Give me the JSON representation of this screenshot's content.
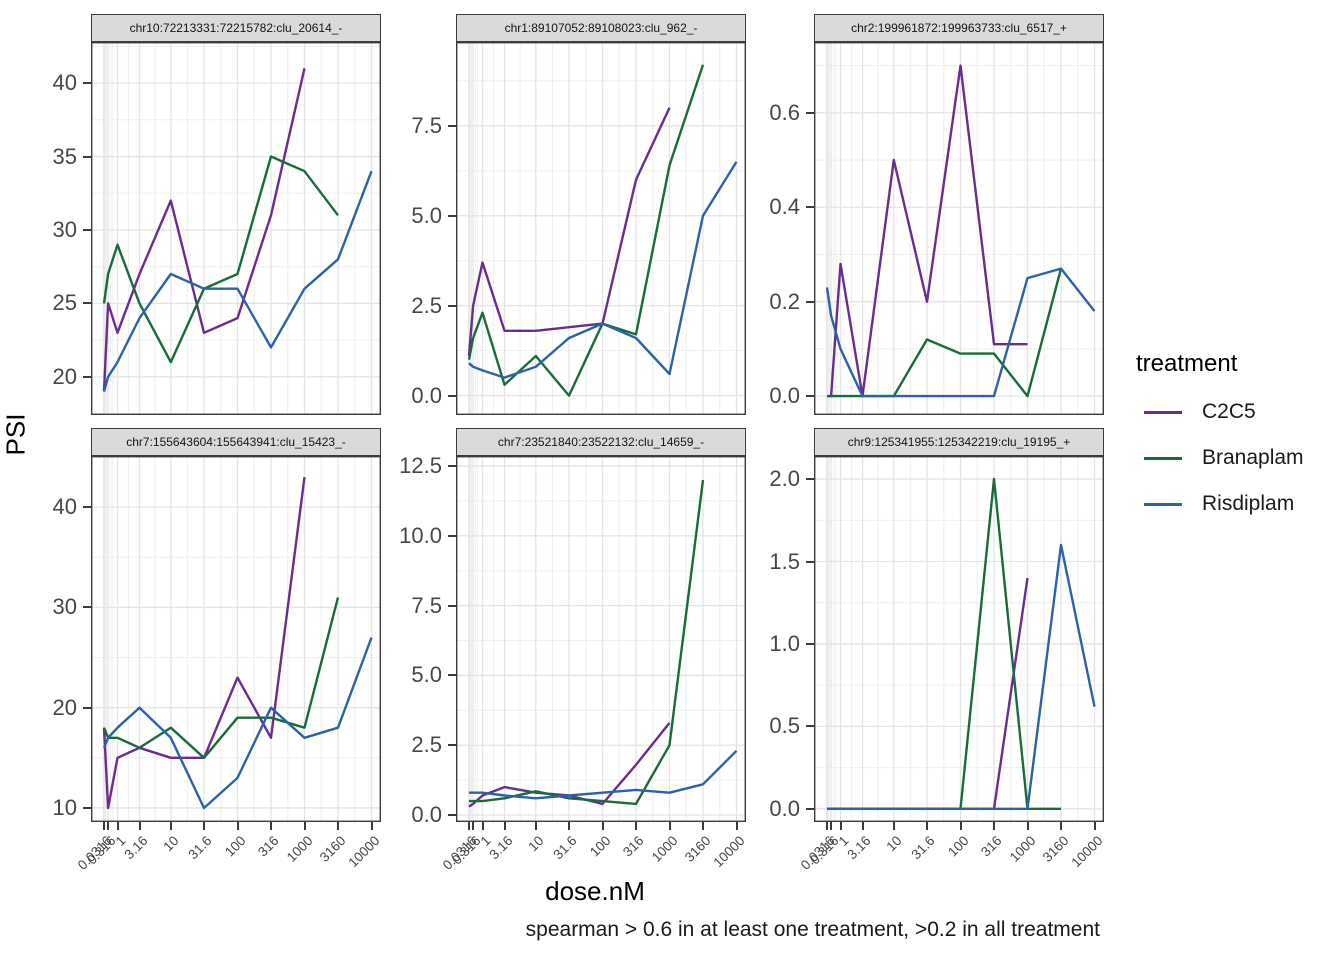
{
  "figure": {
    "x_axis_title": "dose.nM",
    "y_axis_title": "PSI",
    "caption": "spearman > 0.6 in at least one treatment, >0.2 in all treatment"
  },
  "legend": {
    "title": "treatment",
    "entries": [
      {
        "label": "C2C5",
        "color": "#682D8F"
      },
      {
        "label": "Branaplam",
        "color": "#1A6B3C"
      },
      {
        "label": "Risdiplam",
        "color": "#2B62A8"
      }
    ]
  },
  "chart_data": {
    "type": "line",
    "facet_grid": "2x3",
    "x_scale": "pseudo_log",
    "grid": true,
    "legend_position": "right",
    "x": [
      0.0316,
      0.316,
      1,
      3.16,
      10,
      31.6,
      100,
      316,
      1000,
      3160,
      10000
    ],
    "x_tick_labels": [
      "0.0316",
      "0.316",
      "1",
      "3.16",
      "10",
      "31.6",
      "100",
      "316",
      "1000",
      "3160",
      "10000"
    ],
    "xlabel": "dose.nM",
    "ylabel": "PSI",
    "series_names": [
      "C2C5",
      "Branaplam",
      "Risdiplam"
    ],
    "series_colors": {
      "C2C5": "#682D8F",
      "Branaplam": "#1A6B3C",
      "Risdiplam": "#2B62A8"
    },
    "facets": [
      {
        "title": "chr10:72213331:72215782:clu_20614_-",
        "ylim": [
          17.4,
          42.8
        ],
        "yticks": [
          20,
          25,
          30,
          35,
          40
        ],
        "ytick_labels": [
          "20",
          "25",
          "30",
          "35",
          "40"
        ],
        "series": {
          "C2C5": [
            19,
            25,
            23,
            27,
            32,
            23,
            24,
            31,
            41,
            null,
            null
          ],
          "Branaplam": [
            25,
            27,
            29,
            25,
            21,
            26,
            27,
            35,
            34,
            31,
            null
          ],
          "Risdiplam": [
            19,
            20,
            21,
            24,
            27,
            26,
            26,
            22,
            26,
            28,
            34
          ]
        }
      },
      {
        "title": "chr1:89107052:89108023:clu_962_-",
        "ylim": [
          -0.54,
          9.83
        ],
        "yticks": [
          0,
          2.5,
          5,
          7.5
        ],
        "ytick_labels": [
          "0.0",
          "2.5",
          "5.0",
          "7.5"
        ],
        "series": {
          "C2C5": [
            1.1,
            2.5,
            3.7,
            1.8,
            1.8,
            1.9,
            2.0,
            6.0,
            8.0,
            null,
            null
          ],
          "Branaplam": [
            1.0,
            1.6,
            2.3,
            0.3,
            1.1,
            0.0,
            2.0,
            1.7,
            6.4,
            9.2,
            null
          ],
          "Risdiplam": [
            0.9,
            0.8,
            0.7,
            0.5,
            0.8,
            1.6,
            2.0,
            1.6,
            0.6,
            5.0,
            6.5
          ]
        }
      },
      {
        "title": "chr2:199961872:199963733:clu_6517_+",
        "ylim": [
          -0.04,
          0.75
        ],
        "yticks": [
          0,
          0.2,
          0.4,
          0.6
        ],
        "ytick_labels": [
          "0.0",
          "0.2",
          "0.4",
          "0.6"
        ],
        "series": {
          "C2C5": [
            0,
            0,
            0.28,
            0,
            0.5,
            0.2,
            0.7,
            0.11,
            0.11,
            null,
            null
          ],
          "Branaplam": [
            0,
            0,
            0,
            0,
            0,
            0.12,
            0.09,
            0.09,
            0,
            0.27,
            null
          ],
          "Risdiplam": [
            0.23,
            0.17,
            0.1,
            0,
            0,
            0,
            0,
            0,
            0.25,
            0.27,
            0.18
          ]
        }
      },
      {
        "title": "chr7:155643604:155643941:clu_15423_-",
        "ylim": [
          8.6,
          45.1
        ],
        "yticks": [
          10,
          20,
          30,
          40
        ],
        "ytick_labels": [
          "10",
          "20",
          "30",
          "40"
        ],
        "series": {
          "C2C5": [
            18,
            10,
            15,
            16,
            15,
            15,
            23,
            17,
            43,
            null,
            null
          ],
          "Branaplam": [
            18,
            17,
            17,
            16,
            18,
            15,
            19,
            19,
            18,
            31,
            null
          ],
          "Risdiplam": [
            16,
            17,
            18,
            20,
            17,
            10,
            13,
            20,
            17,
            18,
            27
          ]
        }
      },
      {
        "title": "chr7:23521840:23522132:clu_14659_-",
        "ylim": [
          -0.25,
          12.86
        ],
        "yticks": [
          0,
          2.5,
          5,
          7.5,
          10,
          12.5
        ],
        "ytick_labels": [
          "0.0",
          "2.5",
          "5.0",
          "7.5",
          "10.0",
          "12.5"
        ],
        "series": {
          "C2C5": [
            0.3,
            0.4,
            0.7,
            1.0,
            0.8,
            0.7,
            0.4,
            1.8,
            3.3,
            null,
            null
          ],
          "Branaplam": [
            0.5,
            0.5,
            0.5,
            0.6,
            0.85,
            0.6,
            0.5,
            0.4,
            2.5,
            12.0,
            null
          ],
          "Risdiplam": [
            0.8,
            0.8,
            0.8,
            0.7,
            0.6,
            0.7,
            0.8,
            0.9,
            0.8,
            1.1,
            2.3
          ]
        }
      },
      {
        "title": "chr9:125341955:125342219:clu_19195_+",
        "ylim": [
          -0.08,
          2.14
        ],
        "yticks": [
          0,
          0.5,
          1,
          1.5,
          2
        ],
        "ytick_labels": [
          "0.0",
          "0.5",
          "1.0",
          "1.5",
          "2.0"
        ],
        "series": {
          "C2C5": [
            0,
            0,
            0,
            0,
            0,
            0,
            0,
            0,
            1.4,
            null,
            null
          ],
          "Branaplam": [
            0,
            0,
            0,
            0,
            0,
            0,
            0,
            2.0,
            0,
            0,
            null
          ],
          "Risdiplam": [
            0,
            0,
            0,
            0,
            0,
            0,
            0,
            0,
            0,
            1.6,
            0.62
          ]
        }
      }
    ]
  },
  "theme": {
    "strip_bg": "#DADADA",
    "panel_border": "#3C3C3C",
    "grid_major": "#E4E4E4",
    "grid_minor": "#F0F0F0",
    "tick_text": "#474747"
  }
}
